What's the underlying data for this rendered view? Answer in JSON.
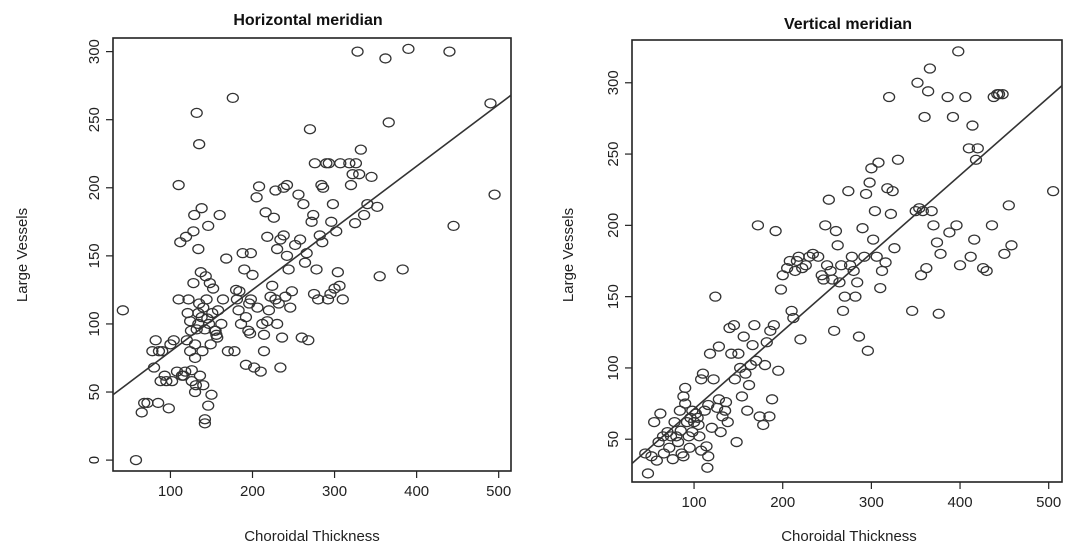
{
  "chart_data": [
    {
      "type": "scatter",
      "title": "Horizontal meridian",
      "xlabel": "Choroidal Thickness",
      "ylabel": "Large Vessels",
      "xlim": [
        30,
        515
      ],
      "ylim": [
        -8,
        310
      ],
      "xticks": [
        100,
        200,
        300,
        400,
        500
      ],
      "yticks": [
        0,
        50,
        100,
        150,
        200,
        250,
        300
      ],
      "grid": false,
      "legend": "none",
      "fit_line": {
        "x": [
          30,
          515
        ],
        "y": [
          48,
          268
        ]
      },
      "points": [
        [
          42,
          110
        ],
        [
          58,
          0
        ],
        [
          65,
          35
        ],
        [
          68,
          42
        ],
        [
          72,
          42
        ],
        [
          78,
          80
        ],
        [
          80,
          68
        ],
        [
          82,
          88
        ],
        [
          85,
          42
        ],
        [
          86,
          80
        ],
        [
          88,
          58
        ],
        [
          90,
          80
        ],
        [
          93,
          62
        ],
        [
          95,
          58
        ],
        [
          98,
          38
        ],
        [
          100,
          85
        ],
        [
          102,
          58
        ],
        [
          104,
          88
        ],
        [
          108,
          65
        ],
        [
          110,
          202
        ],
        [
          110,
          118
        ],
        [
          112,
          160
        ],
        [
          114,
          62
        ],
        [
          116,
          62
        ],
        [
          118,
          65
        ],
        [
          119,
          164
        ],
        [
          120,
          88
        ],
        [
          121,
          108
        ],
        [
          122,
          118
        ],
        [
          124,
          80
        ],
        [
          124,
          102
        ],
        [
          125,
          95
        ],
        [
          126,
          58
        ],
        [
          126,
          66
        ],
        [
          128,
          168
        ],
        [
          128,
          130
        ],
        [
          129,
          180
        ],
        [
          130,
          85
        ],
        [
          130,
          75
        ],
        [
          130,
          50
        ],
        [
          131,
          55
        ],
        [
          132,
          255
        ],
        [
          132,
          96
        ],
        [
          134,
          100
        ],
        [
          134,
          108
        ],
        [
          134,
          155
        ],
        [
          135,
          232
        ],
        [
          135,
          115
        ],
        [
          136,
          62
        ],
        [
          137,
          138
        ],
        [
          138,
          185
        ],
        [
          138,
          105
        ],
        [
          139,
          80
        ],
        [
          140,
          112
        ],
        [
          140,
          55
        ],
        [
          142,
          96
        ],
        [
          142,
          30
        ],
        [
          142,
          27
        ],
        [
          143,
          135
        ],
        [
          144,
          118
        ],
        [
          145,
          104
        ],
        [
          146,
          40
        ],
        [
          146,
          172
        ],
        [
          147,
          100
        ],
        [
          148,
          130
        ],
        [
          149,
          85
        ],
        [
          150,
          48
        ],
        [
          151,
          108
        ],
        [
          152,
          126
        ],
        [
          154,
          95
        ],
        [
          155,
          95
        ],
        [
          156,
          92
        ],
        [
          157,
          90
        ],
        [
          158,
          110
        ],
        [
          160,
          180
        ],
        [
          162,
          100
        ],
        [
          164,
          118
        ],
        [
          168,
          148
        ],
        [
          170,
          80
        ],
        [
          176,
          266
        ],
        [
          178,
          80
        ],
        [
          180,
          125
        ],
        [
          181,
          118
        ],
        [
          183,
          110
        ],
        [
          184,
          124
        ],
        [
          186,
          100
        ],
        [
          188,
          152
        ],
        [
          190,
          140
        ],
        [
          192,
          70
        ],
        [
          192,
          105
        ],
        [
          195,
          95
        ],
        [
          196,
          115
        ],
        [
          197,
          93
        ],
        [
          198,
          118
        ],
        [
          198,
          152
        ],
        [
          200,
          136
        ],
        [
          202,
          68
        ],
        [
          205,
          193
        ],
        [
          206,
          112
        ],
        [
          208,
          201
        ],
        [
          210,
          65
        ],
        [
          212,
          100
        ],
        [
          214,
          92
        ],
        [
          214,
          80
        ],
        [
          216,
          182
        ],
        [
          218,
          164
        ],
        [
          218,
          102
        ],
        [
          220,
          110
        ],
        [
          222,
          120
        ],
        [
          224,
          128
        ],
        [
          226,
          178
        ],
        [
          228,
          118
        ],
        [
          228,
          198
        ],
        [
          230,
          100
        ],
        [
          230,
          155
        ],
        [
          232,
          115
        ],
        [
          234,
          68
        ],
        [
          234,
          162
        ],
        [
          236,
          90
        ],
        [
          238,
          200
        ],
        [
          238,
          165
        ],
        [
          240,
          120
        ],
        [
          242,
          202
        ],
        [
          242,
          150
        ],
        [
          244,
          140
        ],
        [
          246,
          112
        ],
        [
          248,
          124
        ],
        [
          252,
          158
        ],
        [
          256,
          195
        ],
        [
          258,
          162
        ],
        [
          260,
          90
        ],
        [
          262,
          188
        ],
        [
          264,
          145
        ],
        [
          266,
          152
        ],
        [
          268,
          88
        ],
        [
          270,
          243
        ],
        [
          272,
          175
        ],
        [
          274,
          180
        ],
        [
          275,
          122
        ],
        [
          276,
          218
        ],
        [
          278,
          140
        ],
        [
          280,
          118
        ],
        [
          282,
          165
        ],
        [
          284,
          202
        ],
        [
          285,
          160
        ],
        [
          286,
          200
        ],
        [
          290,
          218
        ],
        [
          292,
          118
        ],
        [
          293,
          218
        ],
        [
          295,
          122
        ],
        [
          296,
          175
        ],
        [
          298,
          188
        ],
        [
          300,
          126
        ],
        [
          302,
          168
        ],
        [
          304,
          138
        ],
        [
          306,
          128
        ],
        [
          307,
          218
        ],
        [
          310,
          118
        ],
        [
          318,
          218
        ],
        [
          320,
          202
        ],
        [
          322,
          210
        ],
        [
          325,
          174
        ],
        [
          326,
          218
        ],
        [
          328,
          300
        ],
        [
          330,
          210
        ],
        [
          332,
          228
        ],
        [
          336,
          180
        ],
        [
          340,
          188
        ],
        [
          345,
          208
        ],
        [
          352,
          186
        ],
        [
          355,
          135
        ],
        [
          362,
          295
        ],
        [
          366,
          248
        ],
        [
          383,
          140
        ],
        [
          390,
          302
        ],
        [
          440,
          300
        ],
        [
          445,
          172
        ],
        [
          490,
          262
        ],
        [
          495,
          195
        ]
      ]
    },
    {
      "type": "scatter",
      "title": "Vertical meridian",
      "xlabel": "Choroidal Thickness",
      "ylabel": "Large Vessels",
      "xlim": [
        30,
        515
      ],
      "ylim": [
        20,
        330
      ],
      "xticks": [
        100,
        200,
        300,
        400,
        500
      ],
      "yticks": [
        50,
        100,
        150,
        200,
        250,
        300
      ],
      "grid": false,
      "legend": "none",
      "fit_line": {
        "x": [
          30,
          515
        ],
        "y": [
          33,
          298
        ]
      },
      "points": [
        [
          45,
          40
        ],
        [
          48,
          26
        ],
        [
          52,
          38
        ],
        [
          55,
          62
        ],
        [
          58,
          35
        ],
        [
          60,
          48
        ],
        [
          62,
          68
        ],
        [
          65,
          52
        ],
        [
          66,
          40
        ],
        [
          70,
          55
        ],
        [
          72,
          44
        ],
        [
          74,
          52
        ],
        [
          76,
          36
        ],
        [
          78,
          62
        ],
        [
          80,
          52
        ],
        [
          82,
          48
        ],
        [
          84,
          70
        ],
        [
          85,
          56
        ],
        [
          86,
          40
        ],
        [
          88,
          80
        ],
        [
          88,
          38
        ],
        [
          90,
          86
        ],
        [
          90,
          75
        ],
        [
          92,
          62
        ],
        [
          94,
          52
        ],
        [
          95,
          44
        ],
        [
          96,
          65
        ],
        [
          98,
          55
        ],
        [
          98,
          70
        ],
        [
          100,
          62
        ],
        [
          102,
          68
        ],
        [
          104,
          65
        ],
        [
          105,
          60
        ],
        [
          106,
          52
        ],
        [
          108,
          42
        ],
        [
          108,
          92
        ],
        [
          110,
          96
        ],
        [
          112,
          70
        ],
        [
          114,
          45
        ],
        [
          115,
          30
        ],
        [
          116,
          74
        ],
        [
          116,
          38
        ],
        [
          118,
          110
        ],
        [
          120,
          58
        ],
        [
          122,
          92
        ],
        [
          124,
          150
        ],
        [
          126,
          72
        ],
        [
          128,
          78
        ],
        [
          128,
          115
        ],
        [
          130,
          55
        ],
        [
          132,
          66
        ],
        [
          135,
          70
        ],
        [
          136,
          76
        ],
        [
          138,
          62
        ],
        [
          140,
          128
        ],
        [
          142,
          110
        ],
        [
          145,
          130
        ],
        [
          146,
          92
        ],
        [
          148,
          48
        ],
        [
          150,
          110
        ],
        [
          152,
          100
        ],
        [
          154,
          80
        ],
        [
          156,
          122
        ],
        [
          158,
          96
        ],
        [
          160,
          70
        ],
        [
          162,
          88
        ],
        [
          164,
          102
        ],
        [
          166,
          116
        ],
        [
          168,
          130
        ],
        [
          170,
          105
        ],
        [
          172,
          200
        ],
        [
          174,
          66
        ],
        [
          178,
          60
        ],
        [
          180,
          102
        ],
        [
          182,
          118
        ],
        [
          185,
          66
        ],
        [
          186,
          126
        ],
        [
          188,
          78
        ],
        [
          190,
          130
        ],
        [
          192,
          196
        ],
        [
          195,
          98
        ],
        [
          198,
          155
        ],
        [
          200,
          165
        ],
        [
          205,
          170
        ],
        [
          208,
          175
        ],
        [
          210,
          140
        ],
        [
          212,
          135
        ],
        [
          214,
          168
        ],
        [
          216,
          175
        ],
        [
          218,
          178
        ],
        [
          220,
          120
        ],
        [
          222,
          170
        ],
        [
          226,
          172
        ],
        [
          230,
          178
        ],
        [
          234,
          180
        ],
        [
          240,
          178
        ],
        [
          244,
          165
        ],
        [
          246,
          162
        ],
        [
          248,
          200
        ],
        [
          250,
          172
        ],
        [
          252,
          218
        ],
        [
          254,
          168
        ],
        [
          256,
          162
        ],
        [
          258,
          126
        ],
        [
          260,
          196
        ],
        [
          262,
          186
        ],
        [
          264,
          160
        ],
        [
          266,
          172
        ],
        [
          268,
          140
        ],
        [
          270,
          150
        ],
        [
          274,
          224
        ],
        [
          276,
          172
        ],
        [
          278,
          178
        ],
        [
          280,
          168
        ],
        [
          282,
          150
        ],
        [
          284,
          160
        ],
        [
          286,
          122
        ],
        [
          290,
          198
        ],
        [
          292,
          178
        ],
        [
          294,
          222
        ],
        [
          296,
          112
        ],
        [
          298,
          230
        ],
        [
          300,
          240
        ],
        [
          302,
          190
        ],
        [
          304,
          210
        ],
        [
          306,
          178
        ],
        [
          308,
          244
        ],
        [
          310,
          156
        ],
        [
          312,
          168
        ],
        [
          316,
          174
        ],
        [
          318,
          226
        ],
        [
          320,
          290
        ],
        [
          322,
          208
        ],
        [
          324,
          224
        ],
        [
          326,
          184
        ],
        [
          330,
          246
        ],
        [
          346,
          140
        ],
        [
          350,
          210
        ],
        [
          352,
          300
        ],
        [
          354,
          212
        ],
        [
          356,
          165
        ],
        [
          358,
          210
        ],
        [
          360,
          276
        ],
        [
          362,
          170
        ],
        [
          364,
          294
        ],
        [
          366,
          310
        ],
        [
          368,
          210
        ],
        [
          370,
          200
        ],
        [
          374,
          188
        ],
        [
          376,
          138
        ],
        [
          378,
          180
        ],
        [
          386,
          290
        ],
        [
          388,
          195
        ],
        [
          392,
          276
        ],
        [
          396,
          200
        ],
        [
          398,
          322
        ],
        [
          400,
          172
        ],
        [
          406,
          290
        ],
        [
          410,
          254
        ],
        [
          412,
          178
        ],
        [
          414,
          270
        ],
        [
          416,
          190
        ],
        [
          418,
          246
        ],
        [
          420,
          254
        ],
        [
          426,
          170
        ],
        [
          430,
          168
        ],
        [
          436,
          200
        ],
        [
          438,
          290
        ],
        [
          442,
          292
        ],
        [
          444,
          292
        ],
        [
          448,
          292
        ],
        [
          450,
          180
        ],
        [
          455,
          214
        ],
        [
          458,
          186
        ],
        [
          505,
          224
        ]
      ]
    }
  ]
}
